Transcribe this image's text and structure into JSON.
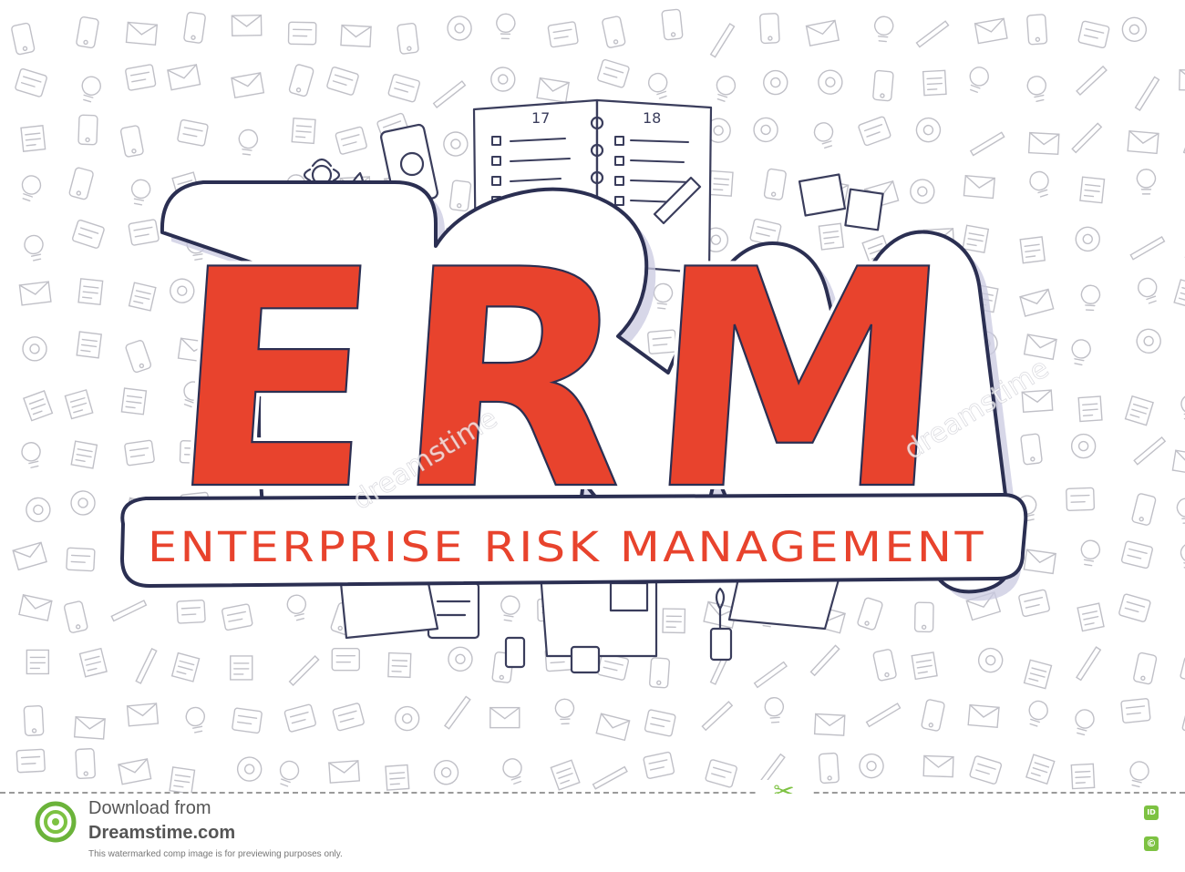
{
  "hero": {
    "acronym": "ERM",
    "subtitle": "ENTERPRISE RISK MANAGEMENT",
    "page_left": "17",
    "page_right": "18"
  },
  "watermark": {
    "text": "dreamstime"
  },
  "footer": {
    "download_line1": "Download from",
    "download_line2": "Dreamstime.com",
    "note": "This watermarked comp image is for previewing purposes only.",
    "badge_id": "ID",
    "badge_copyright": "©"
  },
  "colors": {
    "accent_red": "#e8432d",
    "outline_navy": "#2b2f52",
    "doodle_gray": "#8d8d9a",
    "shadow_lavender": "#c9c9e0",
    "brand_green": "#7dc242"
  },
  "icons": [
    "scissors-icon",
    "dreamstime-logo-icon",
    "id-badge-icon",
    "copyright-badge-icon"
  ]
}
